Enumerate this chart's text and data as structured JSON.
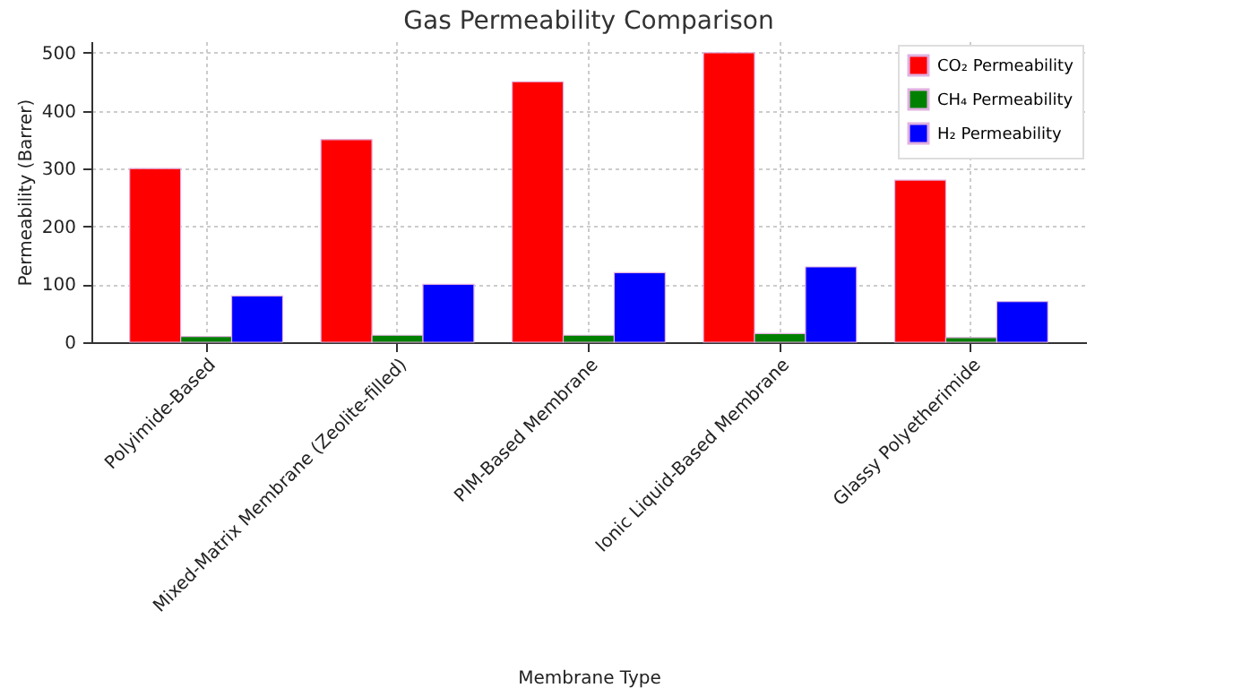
{
  "chart_data": {
    "type": "bar",
    "title": "Gas Permeability Comparison",
    "xlabel": "Membrane Type",
    "ylabel": "Permeability (Barrer)",
    "categories": [
      "Polyimide-Based",
      "Mixed-Matrix Membrane (Zeolite-filled)",
      "PIM-Based Membrane",
      "Ionic Liquid-Based Membrane",
      "Glassy Polyetherimide"
    ],
    "series": [
      {
        "name": "CO₂ Permeability",
        "color": "#ff0000",
        "values": [
          300,
          350,
          450,
          500,
          280
        ]
      },
      {
        "name": "CH₄ Permeability",
        "color": "#008000",
        "values": [
          10,
          12,
          12,
          15,
          8
        ]
      },
      {
        "name": "H₂ Permeability",
        "color": "#0000ff",
        "values": [
          80,
          100,
          120,
          130,
          70
        ]
      }
    ],
    "ylim": [
      0,
      520
    ],
    "yticks": [
      0,
      100,
      200,
      300,
      400,
      500
    ],
    "grid": true,
    "legend": "top right"
  }
}
